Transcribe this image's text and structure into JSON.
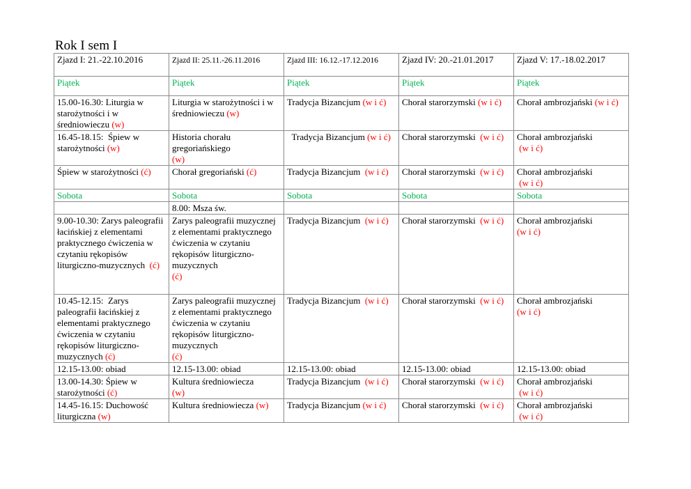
{
  "title": "Rok I sem I",
  "colors": {
    "day": "#00b050",
    "type_marker": "#ff0000",
    "text": "#000000",
    "border": "#8a8a8a"
  },
  "rows": [
    {
      "kind": "header",
      "cells": [
        [
          {
            "t": "Zjazd I: 21.-22.10.2016"
          }
        ],
        [
          {
            "t": "Zjazd II: 25.11.-26.11.2016",
            "small": true
          }
        ],
        [
          {
            "t": "Zjazd III: 16.12.-17.12.2016",
            "small": true
          }
        ],
        [
          {
            "t": "Zjazd IV: 20.-21.01.2017"
          }
        ],
        [
          {
            "t": "Zjazd V: 17.-18.02.2017"
          }
        ]
      ]
    },
    {
      "kind": "day",
      "cells": [
        [
          {
            "t": "Piątek",
            "c": "green"
          }
        ],
        [
          {
            "t": "Piątek",
            "c": "green"
          }
        ],
        [
          {
            "t": "Piątek",
            "c": "green"
          }
        ],
        [
          {
            "t": "Piątek",
            "c": "green"
          }
        ],
        [
          {
            "t": "Piątek",
            "c": "green"
          }
        ]
      ]
    },
    {
      "kind": "class",
      "cells": [
        [
          {
            "t": "15.00-16.30: Liturgia w starożytności i w średniowieczu "
          },
          {
            "t": "(w)",
            "c": "red"
          }
        ],
        [
          {
            "t": "Liturgia w starożytności i w średniowieczu "
          },
          {
            "t": "(w)",
            "c": "red"
          }
        ],
        [
          {
            "t": "Tradycja Bizancjum "
          },
          {
            "t": "(w i ć)",
            "c": "red"
          }
        ],
        [
          {
            "t": "Chorał starorzymski "
          },
          {
            "t": "(w i ć)",
            "c": "red"
          }
        ],
        [
          {
            "t": "Chorał ambrozjański "
          },
          {
            "t": "(w i ć)",
            "c": "red"
          }
        ]
      ]
    },
    {
      "kind": "class",
      "cells": [
        [
          {
            "t": "16.45-18.15:  Śpiew w starożytności "
          },
          {
            "t": "(w)",
            "c": "red"
          }
        ],
        [
          {
            "t": "Historia chorału gregoriańskiego "
          },
          {
            "t": "(w)",
            "c": "red",
            "br": true
          }
        ],
        [
          {
            "t": "  Tradycja Bizancjum "
          },
          {
            "t": "(w i ć)",
            "c": "red"
          }
        ],
        [
          {
            "t": "Chorał starorzymski  "
          },
          {
            "t": "(w i ć)",
            "c": "red"
          }
        ],
        [
          {
            "t": "Chorał ambrozjański "
          },
          {
            "t": " (w i ć)",
            "c": "red",
            "br": true
          }
        ]
      ]
    },
    {
      "kind": "class",
      "cells": [
        [
          {
            "t": "Śpiew w starożytności "
          },
          {
            "t": "(ć)",
            "c": "red"
          }
        ],
        [
          {
            "t": "Chorał gregoriański "
          },
          {
            "t": "(ć)",
            "c": "red"
          }
        ],
        [
          {
            "t": "Tradycja Bizancjum  "
          },
          {
            "t": "(w i ć)",
            "c": "red"
          }
        ],
        [
          {
            "t": "Chorał starorzymski  "
          },
          {
            "t": "(w i ć)",
            "c": "red"
          }
        ],
        [
          {
            "t": "Chorał ambrozjański "
          },
          {
            "t": " (w i ć)",
            "c": "red",
            "br": true
          }
        ]
      ]
    },
    {
      "kind": "day",
      "cells": [
        [
          {
            "t": "Sobota",
            "c": "green"
          }
        ],
        [
          {
            "t": "Sobota",
            "c": "green"
          }
        ],
        [
          {
            "t": "Sobota",
            "c": "green"
          }
        ],
        [
          {
            "t": "Sobota",
            "c": "green"
          }
        ],
        [
          {
            "t": "Sobota",
            "c": "green"
          }
        ]
      ]
    },
    {
      "kind": "class",
      "cells": [
        [],
        [
          {
            "t": "8.00: Msza św."
          }
        ],
        [],
        [],
        []
      ]
    },
    {
      "kind": "class",
      "cells": [
        [
          {
            "t": "9.00-10.30: Zarys paleografii łacińskiej z elementami praktycznego ćwiczenia w czytaniu rękopisów liturgiczno-muzycznych  "
          },
          {
            "t": "(ć)",
            "c": "red"
          }
        ],
        [
          {
            "t": "Zarys paleografii muzycznej z elementami praktycznego ćwiczenia w czytaniu rękopisów liturgiczno-muzycznych "
          },
          {
            "t": "(ć)",
            "c": "red",
            "br": true
          }
        ],
        [
          {
            "t": "Tradycja Bizancjum  "
          },
          {
            "t": "(w i ć)",
            "c": "red"
          }
        ],
        [
          {
            "t": "Chorał starorzymski  "
          },
          {
            "t": "(w i ć)",
            "c": "red"
          }
        ],
        [
          {
            "t": "Chorał ambrozjański "
          },
          {
            "t": "(w i ć)",
            "c": "red",
            "br": true
          }
        ]
      ]
    },
    {
      "kind": "class",
      "cells": [
        [
          {
            "t": "10.45-12.15:  Zarys paleografii łacińskiej z elementami praktycznego ćwiczenia w czytaniu rękopisów liturgiczno-muzycznych "
          },
          {
            "t": "(ć)",
            "c": "red"
          }
        ],
        [
          {
            "t": "Zarys paleografii muzycznej z elementami praktycznego ćwiczenia w czytaniu rękopisów liturgiczno-muzycznych "
          },
          {
            "t": "(ć)",
            "c": "red",
            "br": true
          }
        ],
        [
          {
            "t": "Tradycja Bizancjum  "
          },
          {
            "t": "(w i ć)",
            "c": "red"
          }
        ],
        [
          {
            "t": "Chorał starorzymski  "
          },
          {
            "t": "(w i ć)",
            "c": "red"
          }
        ],
        [
          {
            "t": "Chorał ambrozjański "
          },
          {
            "t": "(w i ć)",
            "c": "red",
            "br": true
          }
        ]
      ]
    },
    {
      "kind": "class",
      "cells": [
        [
          {
            "t": "12.15-13.00: obiad"
          }
        ],
        [
          {
            "t": "12.15-13.00: obiad"
          }
        ],
        [
          {
            "t": "12.15-13.00: obiad"
          }
        ],
        [
          {
            "t": "12.15-13.00: obiad"
          }
        ],
        [
          {
            "t": "12.15-13.00: obiad"
          }
        ]
      ]
    },
    {
      "kind": "class",
      "cells": [
        [
          {
            "t": "13.00-14.30: Śpiew w starożytności "
          },
          {
            "t": "(ć)",
            "c": "red"
          }
        ],
        [
          {
            "t": "Kultura średniowiecza "
          },
          {
            "t": "(w)",
            "c": "red",
            "br": true
          }
        ],
        [
          {
            "t": "Tradycja Bizancjum  "
          },
          {
            "t": "(w i ć)",
            "c": "red"
          }
        ],
        [
          {
            "t": "Chorał starorzymski  "
          },
          {
            "t": "(w i ć)",
            "c": "red"
          }
        ],
        [
          {
            "t": "Chorał ambrozjański "
          },
          {
            "t": " (w i ć)",
            "c": "red",
            "br": true
          }
        ]
      ]
    },
    {
      "kind": "class",
      "cells": [
        [
          {
            "t": "14.45-16.15: Duchowość liturgiczna "
          },
          {
            "t": "(w)",
            "c": "red"
          }
        ],
        [
          {
            "t": "Kultura średniowiecza "
          },
          {
            "t": "(w)",
            "c": "red"
          }
        ],
        [
          {
            "t": "Tradycja Bizancjum "
          },
          {
            "t": "(w i ć)",
            "c": "red"
          }
        ],
        [
          {
            "t": "Chorał starorzymski  "
          },
          {
            "t": "(w i ć)",
            "c": "red"
          }
        ],
        [
          {
            "t": "Chorał ambrozjański "
          },
          {
            "t": " (w i ć)",
            "c": "red",
            "br": true
          }
        ]
      ]
    }
  ]
}
